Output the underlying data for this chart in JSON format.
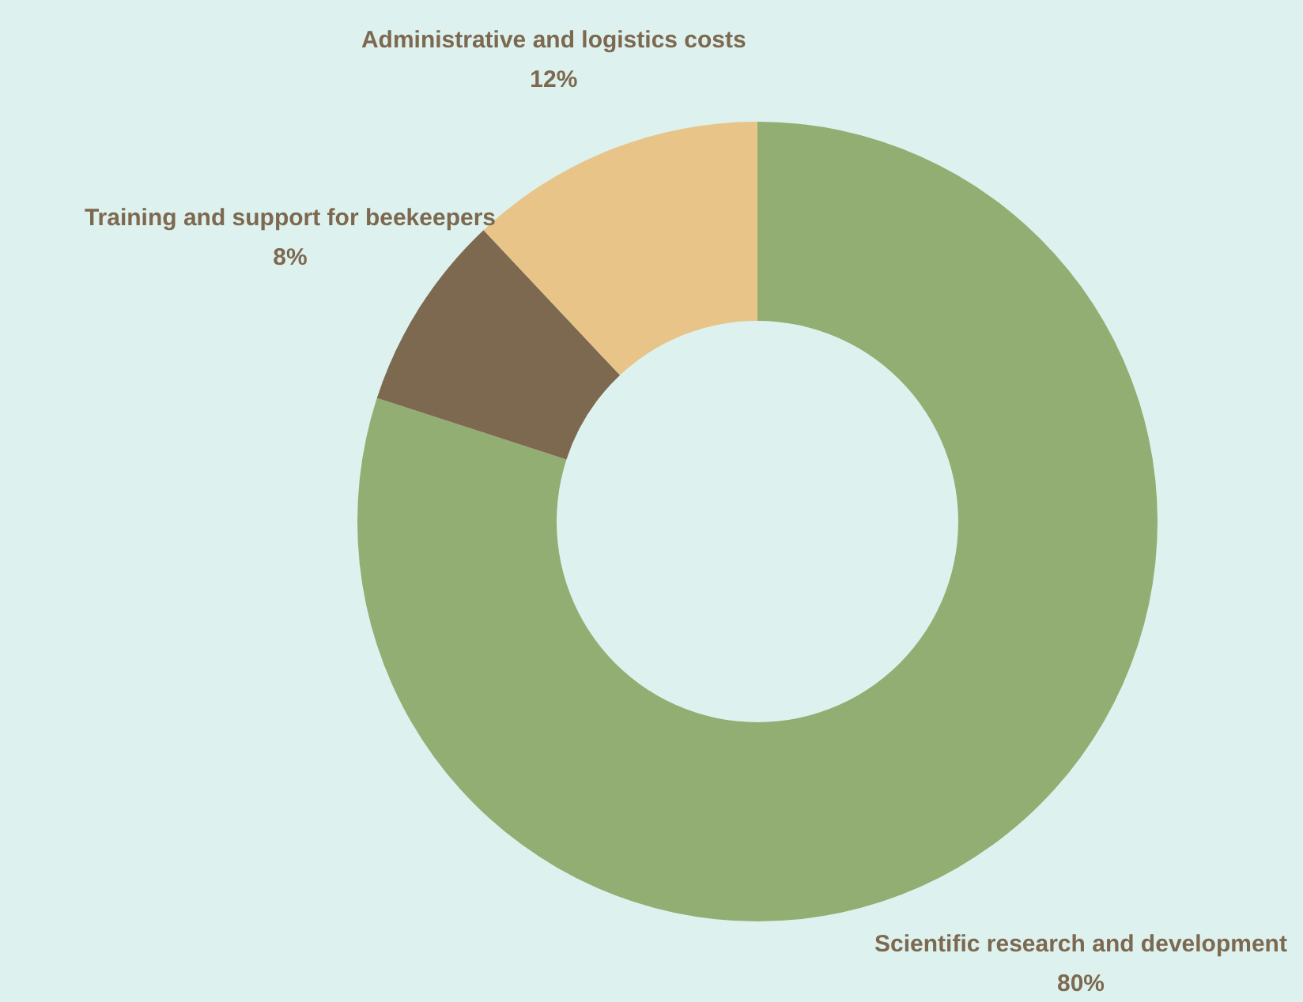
{
  "chart_data": {
    "type": "donut",
    "categories": [
      "Scientific research and development",
      "Training and support for beekeepers",
      "Administrative and logistics costs"
    ],
    "values": [
      80,
      8,
      12
    ],
    "value_labels": [
      "80%",
      "8%",
      "12%"
    ],
    "colors": [
      "#92ae72",
      "#7d6850",
      "#e8c488"
    ]
  }
}
